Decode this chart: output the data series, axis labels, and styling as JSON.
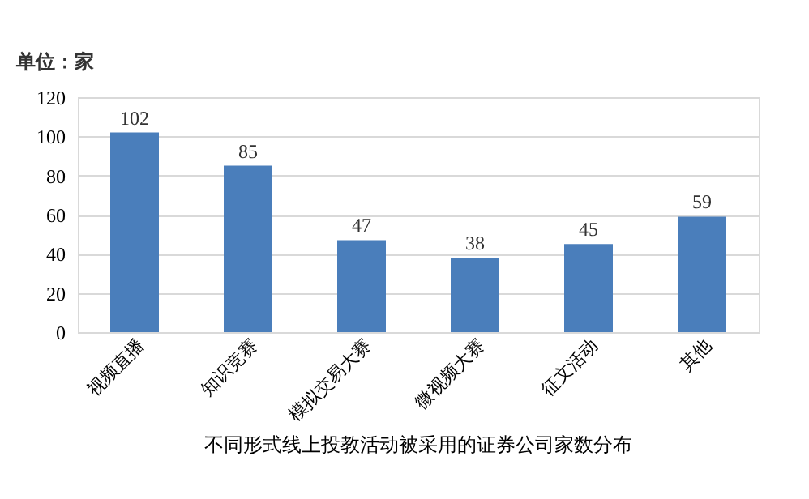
{
  "chart_data": {
    "type": "bar",
    "title": "不同形式线上投教活动被采用的证券公司家数分布",
    "ylabel": "单位：家",
    "categories": [
      "视频直播",
      "知识竞赛",
      "模拟交易大赛",
      "微视频大赛",
      "征文活动",
      "其他"
    ],
    "values": [
      102,
      85,
      47,
      38,
      45,
      59
    ],
    "color": "#4a7ebb",
    "ylim": [
      0,
      120
    ],
    "yticks": [
      0,
      20,
      40,
      60,
      80,
      100,
      120
    ],
    "grid": "y",
    "data_labels": true
  }
}
